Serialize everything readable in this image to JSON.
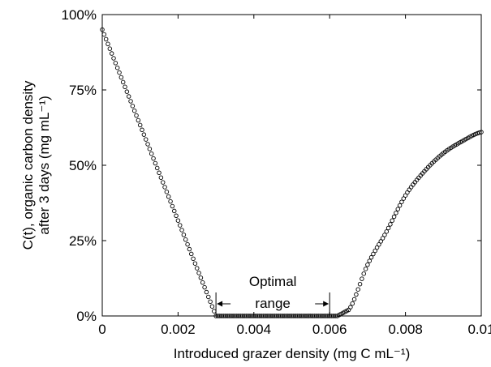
{
  "chart_data": {
    "type": "scatter",
    "marker": "open-circle",
    "marker_color": "#000000",
    "background": "#ffffff",
    "xlabel": "Introduced grazer density (mg C mL⁻¹)",
    "ylabel_lines": [
      "C(t), organic carbon density",
      "after 3 days (mg mL⁻¹)"
    ],
    "xlim": [
      0,
      0.01
    ],
    "ylim": [
      0,
      100
    ],
    "x_ticks": [
      0,
      0.002,
      0.004,
      0.006,
      0.008,
      0.01
    ],
    "x_tick_labels": [
      "0",
      "0.002",
      "0.004",
      "0.006",
      "0.008",
      "0.01"
    ],
    "y_ticks": [
      0,
      25,
      50,
      75,
      100
    ],
    "y_tick_labels": [
      "0%",
      "25%",
      "50%",
      "75%",
      "100%"
    ],
    "grid": false,
    "curve": {
      "x_start": 0,
      "x_end": 0.01,
      "step": 5e-05,
      "description_points": [
        {
          "x": 0,
          "y": 95
        },
        {
          "x": 0.003,
          "y": 0
        },
        {
          "x": 0.0062,
          "y": 0
        },
        {
          "x": 0.0065,
          "y": 2
        },
        {
          "x": 0.007,
          "y": 17
        },
        {
          "x": 0.0075,
          "y": 28
        },
        {
          "x": 0.008,
          "y": 40
        },
        {
          "x": 0.0085,
          "y": 48
        },
        {
          "x": 0.009,
          "y": 54
        },
        {
          "x": 0.0095,
          "y": 58
        },
        {
          "x": 0.01,
          "y": 61
        }
      ]
    },
    "annotations": [
      {
        "text_lines": [
          "Optimal",
          "range"
        ],
        "type": "range-bracket",
        "x_start": 0.003,
        "x_end": 0.006
      }
    ]
  }
}
